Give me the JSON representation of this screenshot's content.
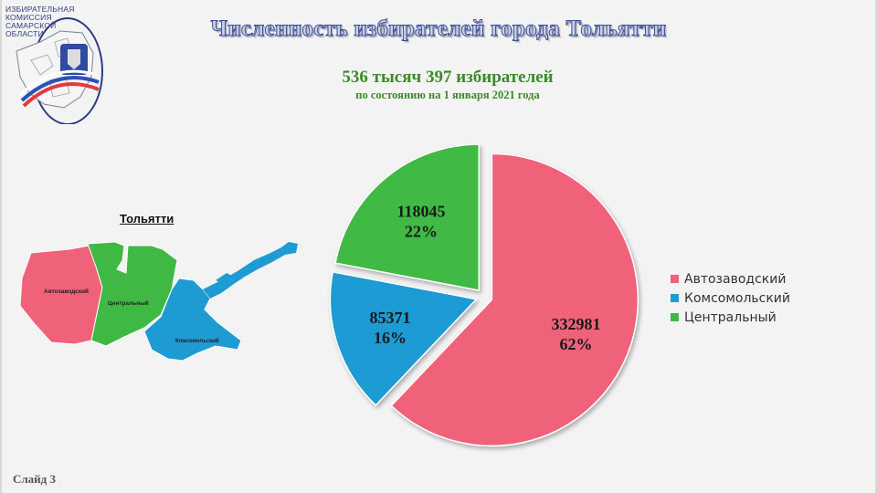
{
  "logo": {
    "lines": [
      "ИЗБИРАТЕЛЬНАЯ",
      "КОМИССИЯ",
      "САМАРСКОЙ",
      "ОБЛАСТИ"
    ]
  },
  "title": "Численность избирателей города Тольятти",
  "subtitle": "536 тысяч 397 избирателей",
  "date_note": "по состоянию на 1 января 2021 года",
  "map": {
    "title": "Тольятти",
    "labels": {
      "avtozavodsky": "Автозаводский",
      "centralny": "Центральный",
      "komsomolsky": "Комсомольский"
    }
  },
  "slide_label": "Слайд 3",
  "colors": {
    "avtozavodsky": "#f0627a",
    "komsomolsky": "#1f9bd4",
    "centralny": "#3fb944"
  },
  "chart_data": {
    "type": "pie",
    "title": "Численность избирателей города Тольятти",
    "slices": [
      {
        "name": "Автозаводский",
        "value": 332981,
        "percent_label": "62%",
        "color": "#f0627a"
      },
      {
        "name": "Комсомольский",
        "value": 85371,
        "percent_label": "16%",
        "color": "#1f9bd4"
      },
      {
        "name": "Центральный",
        "value": 118045,
        "percent_label": "22%",
        "color": "#3fb944"
      }
    ],
    "exploded": true,
    "legend_position": "right"
  }
}
